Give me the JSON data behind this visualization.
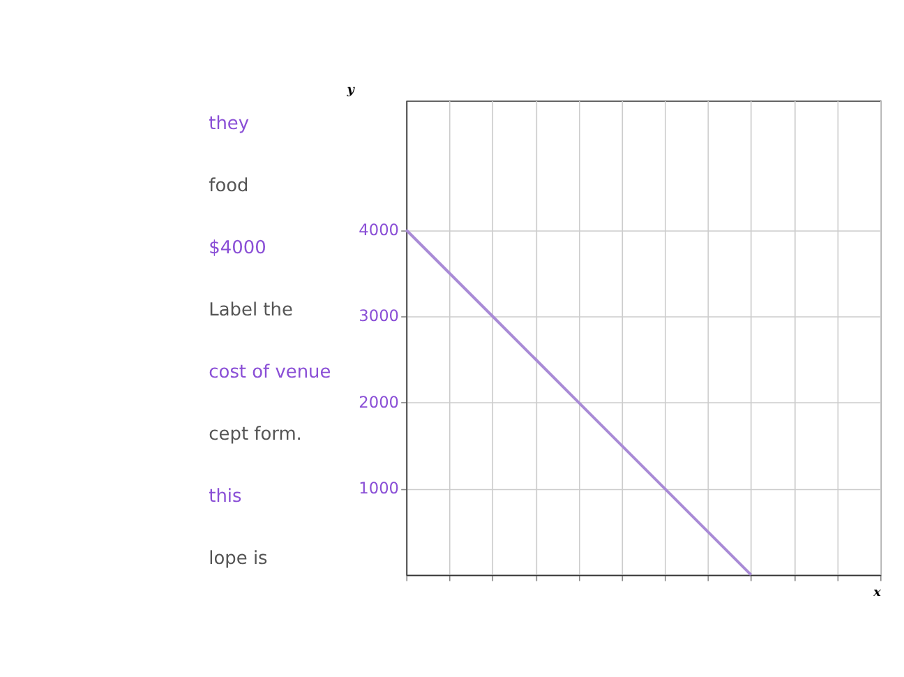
{
  "chart_data": {
    "type": "line",
    "xlabel": "x",
    "ylabel": "y",
    "categories": [
      null,
      null,
      null,
      null,
      null,
      null,
      null,
      null,
      null,
      null,
      null,
      null
    ],
    "series": [
      {
        "color": "#a98bd6",
        "values": [
          4000,
          3500,
          3000,
          2500,
          2000,
          1500,
          1000,
          500,
          0,
          null,
          null,
          null
        ]
      }
    ],
    "ylim": [
      0,
      5500
    ],
    "yticks": [
      1000,
      2000,
      3000,
      4000
    ],
    "grid": true,
    "tick_labels": "y",
    "annotations": [
      "they",
      "food",
      "$4000",
      "Label the",
      "cost of venue",
      "cept form.",
      "this",
      "lope is"
    ]
  }
}
